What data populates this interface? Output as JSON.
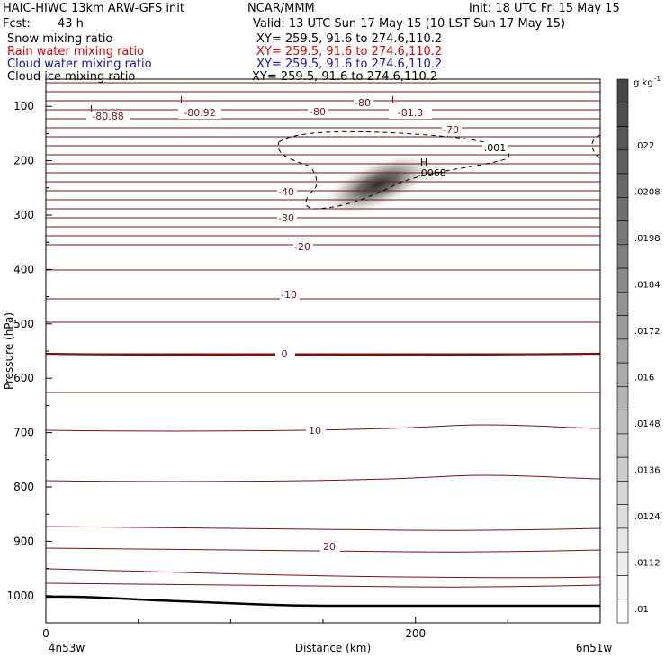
{
  "header": {
    "title_left": "HAIC-HIWC 13km ARW-GFS init",
    "title_center": "NCAR/MMM",
    "init": "Init: 18 UTC Fri 15 May 15",
    "fcst_label": "Fcst:",
    "fcst_value": "43 h",
    "valid": "Valid: 13 UTC Sun 17 May 15 (10 LST Sun 17 May 15)",
    "fields": [
      {
        "name": "Snow mixing ratio",
        "xy": "XY= 259.5, 91.6 to 274.6,110.2",
        "color": "#000000"
      },
      {
        "name": "Rain water mixing ratio",
        "xy": "XY= 259.5, 91.6 to 274.6,110.2",
        "color": "#e00000"
      },
      {
        "name": "Cloud water mixing ratio",
        "xy": "XY= 259.5, 91.6 to 274.6,110.2",
        "color": "#1010d0"
      },
      {
        "name": "Cloud ice mixing ratio",
        "xy": "XY= 259.5, 91.6 to 274.6,110.2",
        "color": "#000000"
      }
    ]
  },
  "chart_data": {
    "type": "heatmap",
    "xlabel": "Distance (km)",
    "ylabel": "Pressure (hPa)",
    "x_ticks": [
      "0",
      "200"
    ],
    "x_endpoints": [
      "4n53w",
      "6n51w"
    ],
    "y_ticks": [
      "100",
      "200",
      "300",
      "400",
      "500",
      "600",
      "700",
      "800",
      "900",
      "1000"
    ],
    "xlim": [
      0,
      300
    ],
    "ylim": [
      50,
      1050
    ],
    "colorbar": {
      "unit": "g kg",
      "unit_exp": "-1",
      "labels": [
        ".022",
        ".0208",
        ".0198",
        ".0184",
        ".0172",
        ".016",
        ".0148",
        ".0136",
        ".0124",
        ".0112",
        ".01"
      ]
    },
    "temperature_contours": {
      "color": "#7a1010",
      "labels": [
        "-80",
        "-70",
        "-40",
        "-30",
        "-20",
        "-10",
        "0",
        "10",
        "20"
      ],
      "min_labels": [
        {
          "text": "-80.88",
          "mark": "L"
        },
        {
          "text": "-80.92",
          "mark": "L"
        },
        {
          "text": "-81.3",
          "mark": "L"
        }
      ]
    },
    "ice_max": {
      "mark": "H",
      "text": ".0068"
    },
    "cloud_contour_label": ".001",
    "surface_line": "terrain"
  }
}
